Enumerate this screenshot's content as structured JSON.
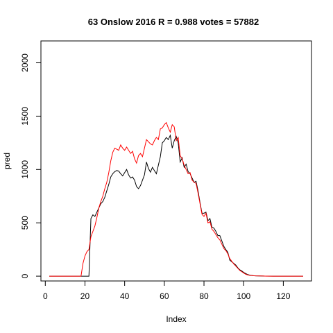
{
  "chart_data": {
    "type": "line",
    "title": "63 Onslow 2016 R = 0.988 votes = 57882",
    "xlabel": "Index",
    "ylabel": "pred",
    "xlim": [
      -2.2,
      134.2
    ],
    "ylim": [
      -45,
      2205
    ],
    "xticks": [
      0,
      20,
      40,
      60,
      80,
      100,
      120
    ],
    "yticks": [
      0,
      500,
      1000,
      1500,
      2000
    ],
    "grid": false,
    "series": [
      {
        "color": "#000000",
        "points": [
          [
            2,
            0
          ],
          [
            10,
            0
          ],
          [
            18,
            0
          ],
          [
            21,
            0
          ],
          [
            22,
            0
          ],
          [
            23,
            540
          ],
          [
            24,
            575
          ],
          [
            25,
            560
          ],
          [
            26,
            600
          ],
          [
            27,
            640
          ],
          [
            28,
            680
          ],
          [
            29,
            700
          ],
          [
            30,
            740
          ],
          [
            31,
            800
          ],
          [
            32,
            860
          ],
          [
            33,
            930
          ],
          [
            34,
            960
          ],
          [
            35,
            980
          ],
          [
            36,
            990
          ],
          [
            37,
            985
          ],
          [
            38,
            960
          ],
          [
            39,
            940
          ],
          [
            40,
            970
          ],
          [
            41,
            1000
          ],
          [
            42,
            950
          ],
          [
            43,
            920
          ],
          [
            44,
            930
          ],
          [
            45,
            900
          ],
          [
            46,
            840
          ],
          [
            47,
            820
          ],
          [
            48,
            850
          ],
          [
            49,
            900
          ],
          [
            50,
            950
          ],
          [
            51,
            1070
          ],
          [
            52,
            1010
          ],
          [
            53,
            975
          ],
          [
            54,
            1020
          ],
          [
            55,
            990
          ],
          [
            56,
            960
          ],
          [
            57,
            1040
          ],
          [
            58,
            1120
          ],
          [
            59,
            1250
          ],
          [
            60,
            1270
          ],
          [
            61,
            1300
          ],
          [
            62,
            1280
          ],
          [
            63,
            1320
          ],
          [
            64,
            1200
          ],
          [
            65,
            1270
          ],
          [
            66,
            1310
          ],
          [
            67,
            1250
          ],
          [
            68,
            1070
          ],
          [
            69,
            1110
          ],
          [
            70,
            1020
          ],
          [
            71,
            1050
          ],
          [
            72,
            980
          ],
          [
            73,
            960
          ],
          [
            74,
            920
          ],
          [
            75,
            880
          ],
          [
            76,
            890
          ],
          [
            77,
            800
          ],
          [
            78,
            690
          ],
          [
            79,
            590
          ],
          [
            80,
            590
          ],
          [
            81,
            600
          ],
          [
            82,
            520
          ],
          [
            83,
            540
          ],
          [
            84,
            460
          ],
          [
            85,
            450
          ],
          [
            86,
            420
          ],
          [
            87,
            380
          ],
          [
            88,
            380
          ],
          [
            89,
            330
          ],
          [
            90,
            280
          ],
          [
            91,
            250
          ],
          [
            92,
            225
          ],
          [
            93,
            150
          ],
          [
            94,
            135
          ],
          [
            95,
            120
          ],
          [
            96,
            105
          ],
          [
            97,
            80
          ],
          [
            98,
            60
          ],
          [
            99,
            50
          ],
          [
            100,
            35
          ],
          [
            101,
            25
          ],
          [
            102,
            15
          ],
          [
            103,
            10
          ],
          [
            104,
            8
          ],
          [
            105,
            5
          ],
          [
            106,
            3
          ],
          [
            108,
            2
          ],
          [
            110,
            1
          ],
          [
            115,
            0
          ],
          [
            120,
            0
          ],
          [
            125,
            0
          ],
          [
            130,
            0
          ]
        ]
      },
      {
        "color": "#ff0000",
        "points": [
          [
            2,
            0
          ],
          [
            10,
            0
          ],
          [
            18,
            0
          ],
          [
            19,
            120
          ],
          [
            20,
            190
          ],
          [
            21,
            230
          ],
          [
            22,
            250
          ],
          [
            23,
            370
          ],
          [
            24,
            420
          ],
          [
            25,
            470
          ],
          [
            26,
            550
          ],
          [
            27,
            640
          ],
          [
            28,
            700
          ],
          [
            29,
            750
          ],
          [
            30,
            820
          ],
          [
            31,
            880
          ],
          [
            32,
            970
          ],
          [
            33,
            1080
          ],
          [
            34,
            1160
          ],
          [
            35,
            1200
          ],
          [
            36,
            1190
          ],
          [
            37,
            1180
          ],
          [
            38,
            1230
          ],
          [
            39,
            1200
          ],
          [
            40,
            1180
          ],
          [
            41,
            1210
          ],
          [
            42,
            1180
          ],
          [
            43,
            1150
          ],
          [
            44,
            1170
          ],
          [
            45,
            1100
          ],
          [
            46,
            1060
          ],
          [
            47,
            1130
          ],
          [
            48,
            1150
          ],
          [
            49,
            1120
          ],
          [
            50,
            1200
          ],
          [
            51,
            1280
          ],
          [
            52,
            1260
          ],
          [
            53,
            1240
          ],
          [
            54,
            1230
          ],
          [
            55,
            1270
          ],
          [
            56,
            1300
          ],
          [
            57,
            1280
          ],
          [
            58,
            1380
          ],
          [
            59,
            1390
          ],
          [
            60,
            1420
          ],
          [
            61,
            1440
          ],
          [
            62,
            1390
          ],
          [
            63,
            1350
          ],
          [
            64,
            1420
          ],
          [
            65,
            1400
          ],
          [
            66,
            1270
          ],
          [
            67,
            1300
          ],
          [
            68,
            1130
          ],
          [
            69,
            1100
          ],
          [
            70,
            1040
          ],
          [
            71,
            1000
          ],
          [
            72,
            960
          ],
          [
            73,
            970
          ],
          [
            74,
            900
          ],
          [
            75,
            880
          ],
          [
            76,
            870
          ],
          [
            77,
            780
          ],
          [
            78,
            680
          ],
          [
            79,
            580
          ],
          [
            80,
            560
          ],
          [
            81,
            590
          ],
          [
            82,
            500
          ],
          [
            83,
            510
          ],
          [
            84,
            440
          ],
          [
            85,
            420
          ],
          [
            86,
            390
          ],
          [
            87,
            360
          ],
          [
            88,
            340
          ],
          [
            89,
            300
          ],
          [
            90,
            260
          ],
          [
            91,
            240
          ],
          [
            92,
            210
          ],
          [
            93,
            165
          ],
          [
            94,
            140
          ],
          [
            95,
            115
          ],
          [
            96,
            95
          ],
          [
            97,
            75
          ],
          [
            98,
            55
          ],
          [
            99,
            42
          ],
          [
            100,
            30
          ],
          [
            101,
            18
          ],
          [
            102,
            12
          ],
          [
            103,
            8
          ],
          [
            104,
            6
          ],
          [
            105,
            4
          ],
          [
            106,
            3
          ],
          [
            108,
            2
          ],
          [
            110,
            1
          ],
          [
            115,
            0
          ],
          [
            120,
            0
          ],
          [
            125,
            0
          ],
          [
            130,
            0
          ]
        ]
      }
    ]
  }
}
